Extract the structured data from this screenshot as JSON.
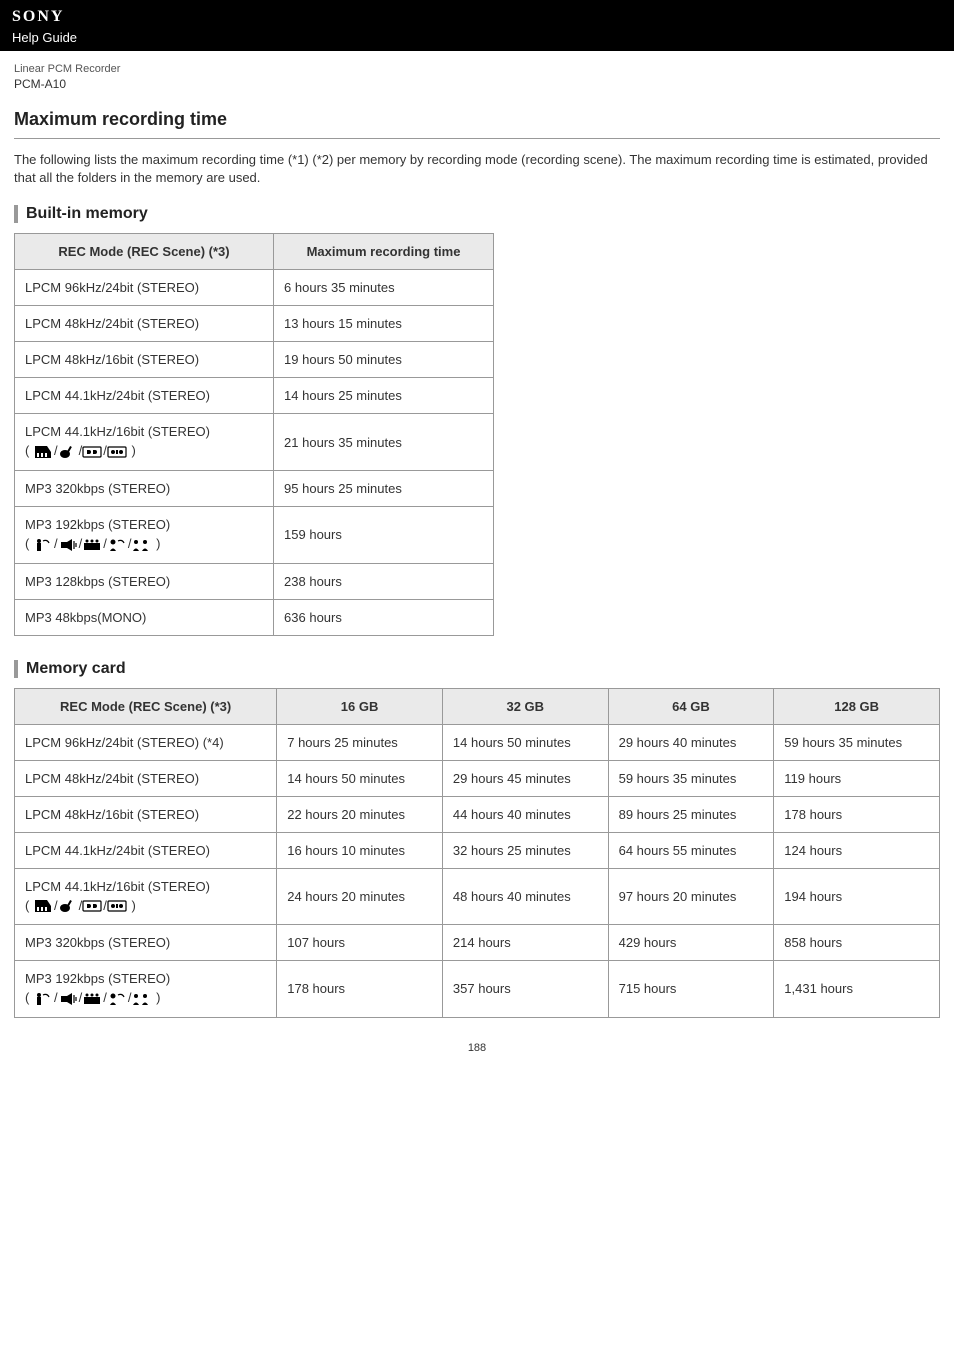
{
  "header": {
    "brand": "SONY",
    "help_guide": "Help Guide",
    "product_line": "Linear PCM Recorder",
    "model": "PCM-A10"
  },
  "title": "Maximum recording time",
  "intro": "The following lists the maximum recording time (*1) (*2) per memory by recording mode (recording scene). The maximum recording time is estimated, provided that all the folders in the memory are used.",
  "builtin": {
    "heading": "Built-in memory",
    "columns": [
      "REC Mode (REC Scene) (*3)",
      "Maximum recording time"
    ],
    "rows": [
      {
        "mode": "LPCM 96kHz/24bit (STEREO)",
        "time": "6 hours 35 minutes",
        "icons": null
      },
      {
        "mode": "LPCM 48kHz/24bit (STEREO)",
        "time": "13 hours 15 minutes",
        "icons": null
      },
      {
        "mode": "LPCM 48kHz/16bit (STEREO)",
        "time": "19 hours 50 minutes",
        "icons": null
      },
      {
        "mode": "LPCM 44.1kHz/24bit (STEREO)",
        "time": "14 hours 25 minutes",
        "icons": null
      },
      {
        "mode": "LPCM 44.1kHz/16bit (STEREO)",
        "time": "21 hours 35 minutes",
        "icons": "music"
      },
      {
        "mode": "MP3 320kbps (STEREO)",
        "time": "95 hours 25 minutes",
        "icons": null
      },
      {
        "mode": "MP3 192kbps (STEREO)",
        "time": "159 hours",
        "icons": "voice"
      },
      {
        "mode": "MP3 128kbps (STEREO)",
        "time": "238 hours",
        "icons": null
      },
      {
        "mode": "MP3 48kbps(MONO)",
        "time": "636 hours",
        "icons": null
      }
    ]
  },
  "cards": {
    "heading": "Memory card",
    "columns": [
      "REC Mode (REC Scene) (*3)",
      "16 GB",
      "32 GB",
      "64 GB",
      "128 GB"
    ],
    "rows": [
      {
        "mode": "LPCM 96kHz/24bit (STEREO) (*4)",
        "c16": "7 hours 25 minutes",
        "c32": "14 hours 50 minutes",
        "c64": "29 hours 40 minutes",
        "c128": "59 hours 35 minutes",
        "icons": null
      },
      {
        "mode": "LPCM 48kHz/24bit (STEREO)",
        "c16": "14 hours 50 minutes",
        "c32": "29 hours 45 minutes",
        "c64": "59 hours 35 minutes",
        "c128": "119 hours",
        "icons": null
      },
      {
        "mode": "LPCM 48kHz/16bit (STEREO)",
        "c16": "22 hours 20 minutes",
        "c32": "44 hours 40 minutes",
        "c64": "89 hours 25 minutes",
        "c128": "178 hours",
        "icons": null
      },
      {
        "mode": "LPCM 44.1kHz/24bit (STEREO)",
        "c16": "16 hours 10 minutes",
        "c32": "32 hours 25 minutes",
        "c64": "64 hours 55 minutes",
        "c128": "124 hours",
        "icons": null
      },
      {
        "mode": "LPCM 44.1kHz/16bit (STEREO)",
        "c16": "24 hours 20 minutes",
        "c32": "48 hours 40 minutes",
        "c64": "97 hours 20 minutes",
        "c128": "194 hours",
        "icons": "music"
      },
      {
        "mode": "MP3 320kbps (STEREO)",
        "c16": "107 hours",
        "c32": "214 hours",
        "c64": "429 hours",
        "c128": "858 hours",
        "icons": null
      },
      {
        "mode": "MP3 192kbps (STEREO)",
        "c16": "178 hours",
        "c32": "357 hours",
        "c64": "715 hours",
        "c128": "1,431 hours",
        "icons": "voice"
      }
    ]
  },
  "page_number": "188",
  "icon_sets": {
    "music": [
      "piano-icon",
      "guitar-icon",
      "band1-icon",
      "band2-icon"
    ],
    "voice": [
      "lecture-icon",
      "audio-in-icon",
      "meeting-icon",
      "voice-memo-icon",
      "interview-icon"
    ]
  }
}
